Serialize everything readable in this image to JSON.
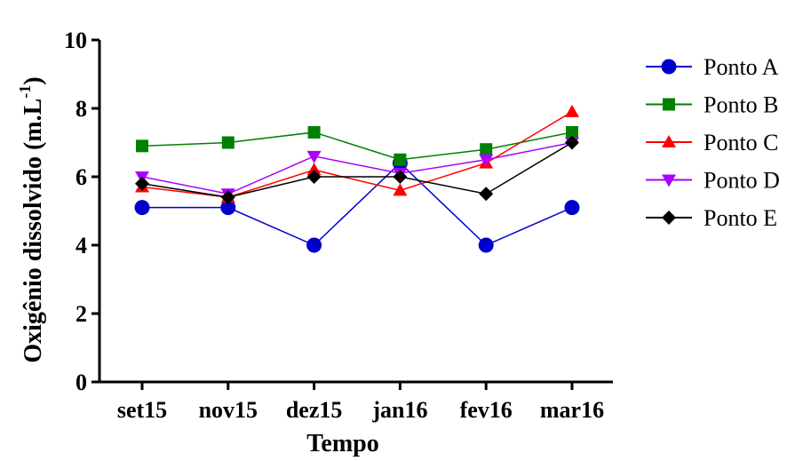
{
  "chart_data": {
    "type": "line",
    "xlabel": "Tempo",
    "ylabel": "Oxigênio dissolvido (m.L",
    "ylabel_sup": "-1",
    "ylabel_close": ")",
    "categories": [
      "set15",
      "nov15",
      "dez15",
      "jan16",
      "fev16",
      "mar16"
    ],
    "ylim": [
      0,
      10
    ],
    "yticks": [
      "0",
      "2",
      "4",
      "6",
      "8",
      "10"
    ],
    "legend_position": "right",
    "grid": false,
    "series": [
      {
        "name": "Ponto A",
        "marker": "circle",
        "color": "#0000cc",
        "values": [
          5.1,
          5.1,
          4.0,
          6.4,
          4.0,
          5.1
        ]
      },
      {
        "name": "Ponto B",
        "marker": "square",
        "color": "#008000",
        "values": [
          6.9,
          7.0,
          7.3,
          6.5,
          6.8,
          7.3
        ]
      },
      {
        "name": "Ponto C",
        "marker": "triangle-up",
        "color": "#ff0000",
        "values": [
          5.7,
          5.4,
          6.2,
          5.6,
          6.4,
          7.9
        ]
      },
      {
        "name": "Ponto D",
        "marker": "triangle-down",
        "color": "#aa00ff",
        "values": [
          6.0,
          5.5,
          6.6,
          6.1,
          6.5,
          7.0
        ]
      },
      {
        "name": "Ponto E",
        "marker": "diamond",
        "color": "#000000",
        "values": [
          5.8,
          5.4,
          6.0,
          6.0,
          5.5,
          7.0
        ]
      }
    ]
  }
}
